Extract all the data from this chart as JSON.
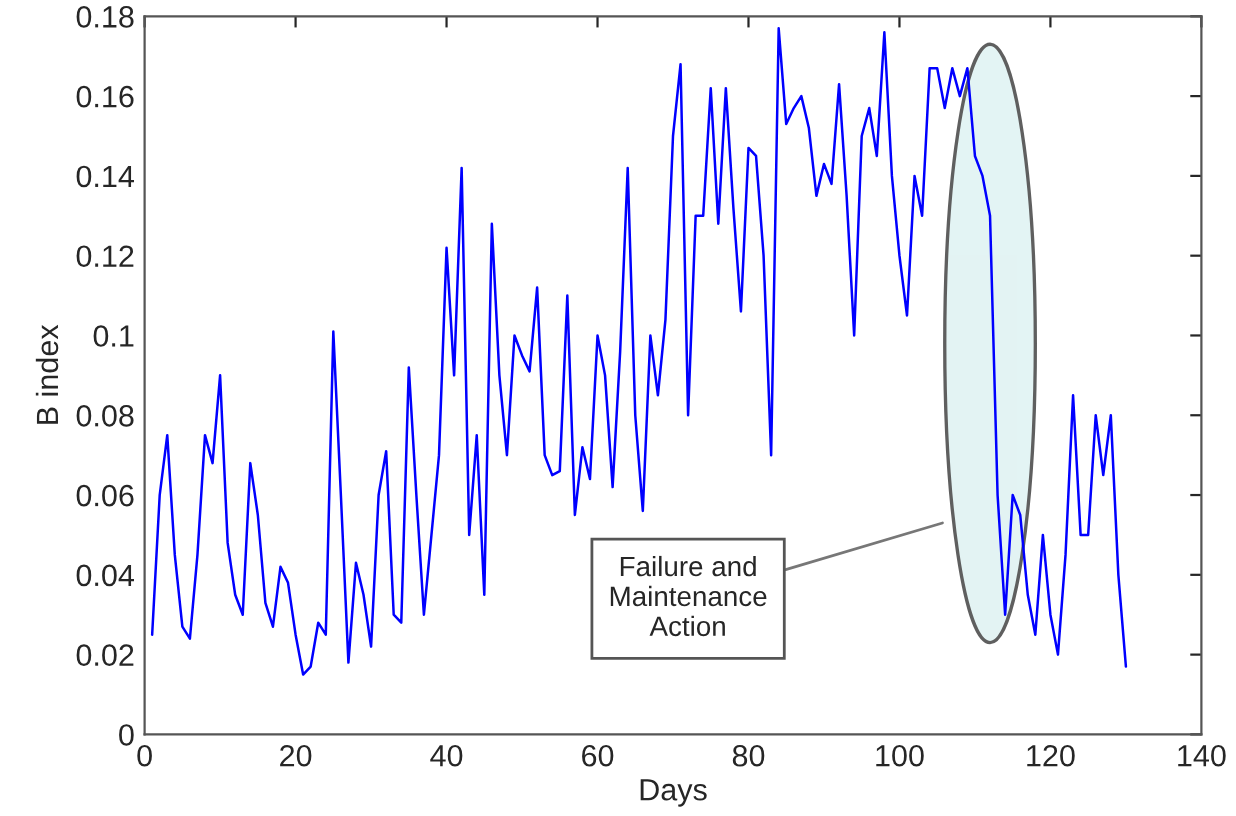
{
  "chart_data": {
    "type": "line",
    "xlabel": "Days",
    "ylabel": "B index",
    "x": [
      1,
      2,
      3,
      4,
      5,
      6,
      7,
      8,
      9,
      10,
      11,
      12,
      13,
      14,
      15,
      16,
      17,
      18,
      19,
      20,
      21,
      22,
      23,
      24,
      25,
      26,
      27,
      28,
      29,
      30,
      31,
      32,
      33,
      34,
      35,
      36,
      37,
      38,
      39,
      40,
      41,
      42,
      43,
      44,
      45,
      46,
      47,
      48,
      49,
      50,
      51,
      52,
      53,
      54,
      55,
      56,
      57,
      58,
      59,
      60,
      61,
      62,
      63,
      64,
      65,
      66,
      67,
      68,
      69,
      70,
      71,
      72,
      73,
      74,
      75,
      76,
      77,
      78,
      79,
      80,
      81,
      82,
      83,
      84,
      85,
      86,
      87,
      88,
      89,
      90,
      91,
      92,
      93,
      94,
      95,
      96,
      97,
      98,
      99,
      100,
      101,
      102,
      103,
      104,
      105,
      106,
      107,
      108,
      109,
      110,
      111,
      112,
      113,
      114,
      115,
      116,
      117,
      118,
      119,
      120,
      121,
      122,
      123,
      124,
      125,
      126,
      127,
      128,
      129,
      130
    ],
    "series": [
      {
        "color": "#0000ff",
        "values": [
          0.025,
          0.06,
          0.075,
          0.045,
          0.027,
          0.024,
          0.045,
          0.075,
          0.068,
          0.09,
          0.048,
          0.035,
          0.03,
          0.068,
          0.055,
          0.033,
          0.027,
          0.042,
          0.038,
          0.025,
          0.015,
          0.017,
          0.028,
          0.025,
          0.101,
          0.06,
          0.018,
          0.043,
          0.035,
          0.022,
          0.06,
          0.071,
          0.03,
          0.028,
          0.092,
          0.06,
          0.03,
          0.05,
          0.07,
          0.122,
          0.09,
          0.142,
          0.05,
          0.075,
          0.035,
          0.128,
          0.09,
          0.07,
          0.1,
          0.095,
          0.091,
          0.112,
          0.07,
          0.065,
          0.066,
          0.11,
          0.055,
          0.072,
          0.064,
          0.1,
          0.09,
          0.062,
          0.096,
          0.142,
          0.08,
          0.056,
          0.1,
          0.085,
          0.104,
          0.15,
          0.168,
          0.08,
          0.13,
          0.13,
          0.162,
          0.128,
          0.162,
          0.132,
          0.106,
          0.147,
          0.145,
          0.12,
          0.07,
          0.177,
          0.153,
          0.157,
          0.16,
          0.152,
          0.135,
          0.143,
          0.138,
          0.163,
          0.135,
          0.1,
          0.15,
          0.157,
          0.145,
          0.176,
          0.14,
          0.12,
          0.105,
          0.14,
          0.13,
          0.167,
          0.167,
          0.157,
          0.167,
          0.16,
          0.167,
          0.145,
          0.14,
          0.13,
          0.06,
          0.03,
          0.06,
          0.055,
          0.035,
          0.025,
          0.05,
          0.03,
          0.02,
          0.045,
          0.085,
          0.05,
          0.05,
          0.08,
          0.065,
          0.08,
          0.04,
          0.017
        ]
      }
    ],
    "xlim": [
      0,
      140
    ],
    "xticks": [
      0,
      20,
      40,
      60,
      80,
      100,
      120,
      140
    ],
    "ylim": [
      0,
      0.18
    ],
    "yticks": [
      0,
      0.02,
      0.04,
      0.06,
      0.08,
      0.1,
      0.12,
      0.14,
      0.16,
      0.18
    ],
    "line_style": "solid",
    "grid": false,
    "legend": false,
    "annotations": [
      "Failure and\nMaintenance\nAction"
    ]
  }
}
